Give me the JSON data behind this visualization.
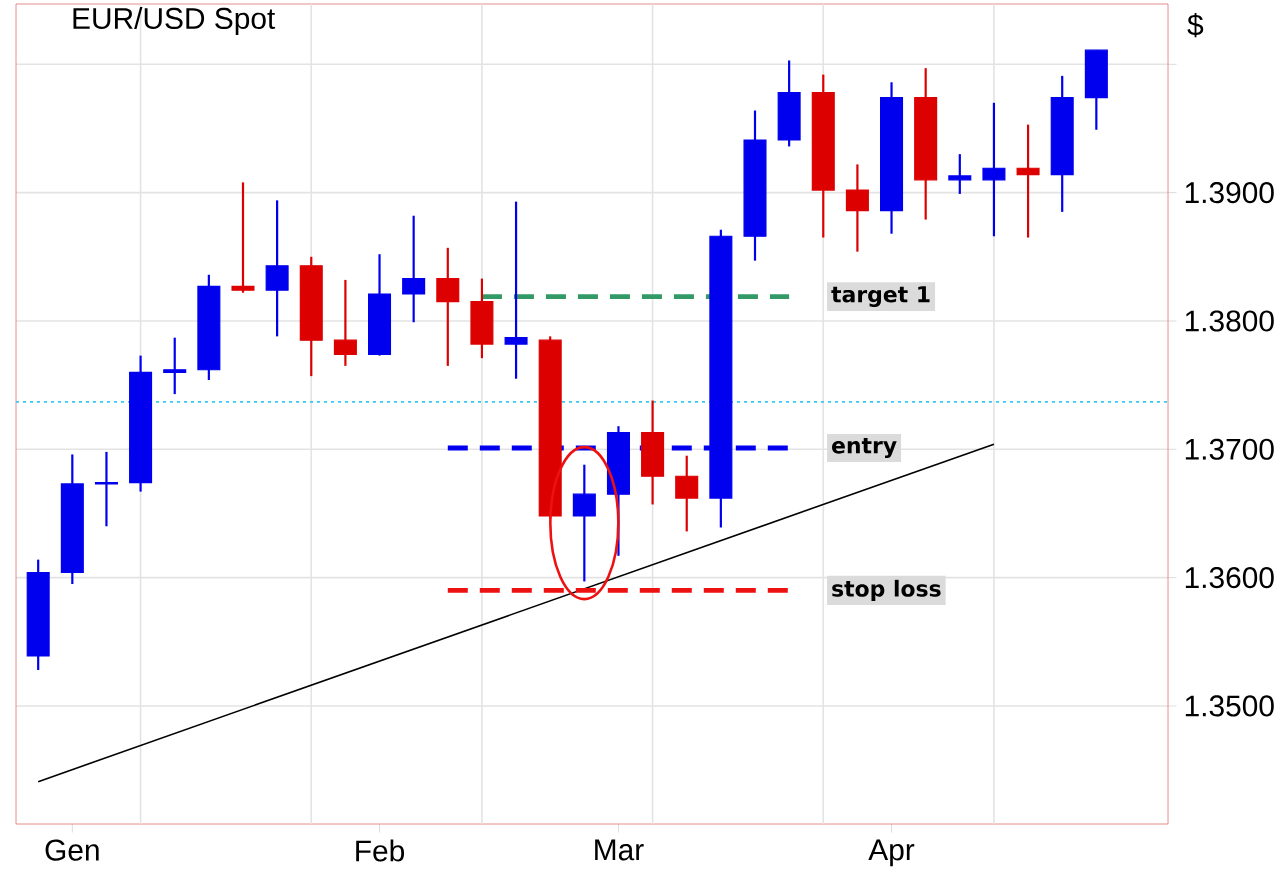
{
  "chart_data": {
    "type": "candlestick",
    "title": "EUR/USD Spot",
    "ylabel": "$",
    "categories": [
      null,
      "Gen",
      null,
      null,
      null,
      null,
      null,
      null,
      null,
      null,
      "Feb",
      null,
      null,
      null,
      null,
      null,
      null,
      "Mar",
      null,
      null,
      null,
      null,
      null,
      null,
      null,
      "Apr",
      null,
      null,
      null,
      null,
      null,
      null
    ],
    "ohlc": [
      [
        1.3539,
        1.3614,
        1.3528,
        1.3604
      ],
      [
        1.3604,
        1.3696,
        1.3595,
        1.3673
      ],
      [
        1.3673,
        1.3698,
        1.364,
        1.3674
      ],
      [
        1.3674,
        1.3773,
        1.3667,
        1.376
      ],
      [
        1.376,
        1.3787,
        1.3743,
        1.3762
      ],
      [
        1.3762,
        1.3836,
        1.3754,
        1.3827
      ],
      [
        1.3827,
        1.3908,
        1.3822,
        1.3824
      ],
      [
        1.3824,
        1.3894,
        1.3788,
        1.3843
      ],
      [
        1.3843,
        1.385,
        1.3757,
        1.3785
      ],
      [
        1.3785,
        1.3832,
        1.3765,
        1.3774
      ],
      [
        1.3774,
        1.3852,
        1.3773,
        1.3821
      ],
      [
        1.3821,
        1.3882,
        1.3799,
        1.3833
      ],
      [
        1.3833,
        1.3857,
        1.3765,
        1.3815
      ],
      [
        1.3815,
        1.3833,
        1.3771,
        1.3782
      ],
      [
        1.3782,
        1.3893,
        1.3755,
        1.3787
      ],
      [
        1.3785,
        1.3788,
        1.3646,
        1.3648
      ],
      [
        1.3648,
        1.3688,
        1.3597,
        1.3665
      ],
      [
        1.3665,
        1.3718,
        1.3617,
        1.3713
      ],
      [
        1.3713,
        1.3738,
        1.3657,
        1.3679
      ],
      [
        1.3679,
        1.3695,
        1.3636,
        1.3662
      ],
      [
        1.3662,
        1.3871,
        1.3639,
        1.3866
      ],
      [
        1.3866,
        1.3964,
        1.3847,
        1.3941
      ],
      [
        1.3941,
        1.4003,
        1.3936,
        1.3978
      ],
      [
        1.3978,
        1.3992,
        1.3865,
        1.3902
      ],
      [
        1.3902,
        1.3922,
        1.3854,
        1.3886
      ],
      [
        1.3886,
        1.3986,
        1.3868,
        1.3974
      ],
      [
        1.3974,
        1.3997,
        1.3879,
        1.391
      ],
      [
        1.391,
        1.393,
        1.3899,
        1.3913
      ],
      [
        1.391,
        1.397,
        1.3866,
        1.3919
      ],
      [
        1.3919,
        1.3953,
        1.3865,
        1.3914
      ],
      [
        1.3914,
        1.3991,
        1.3885,
        1.3974
      ],
      [
        1.3974,
        1.4011,
        1.3949,
        1.4011
      ]
    ],
    "colors": [
      "#0000ee",
      "#0000ee",
      "#0000ee",
      "#0000ee",
      "#0000ee",
      "#0000ee",
      "#dd0000",
      "#0000ee",
      "#dd0000",
      "#dd0000",
      "#0000ee",
      "#0000ee",
      "#dd0000",
      "#dd0000",
      "#0000ee",
      "#dd0000",
      "#0000ee",
      "#0000ee",
      "#dd0000",
      "#dd0000",
      "#0000ee",
      "#0000ee",
      "#0000ee",
      "#dd0000",
      "#dd0000",
      "#0000ee",
      "#dd0000",
      "#0000ee",
      "#0000ee",
      "#dd0000",
      "#0000ee",
      "#0000ee"
    ],
    "series": [
      {
        "type": "line",
        "color": "#000000",
        "line_style": "solid",
        "values": [
          1.3441,
          null,
          null,
          null,
          null,
          null,
          null,
          null,
          null,
          null,
          null,
          null,
          null,
          null,
          null,
          null,
          null,
          null,
          null,
          null,
          null,
          null,
          null,
          null,
          null,
          null,
          null,
          null,
          1.3704,
          null,
          null,
          null
        ]
      },
      {
        "type": "line",
        "name": "target 1",
        "color": "#339966",
        "line_style": "dashed",
        "values": [
          null,
          null,
          null,
          null,
          null,
          null,
          null,
          null,
          null,
          null,
          null,
          null,
          null,
          1.3819,
          null,
          null,
          null,
          null,
          null,
          null,
          null,
          null,
          1.3819,
          null,
          null,
          null,
          null,
          null,
          null,
          null,
          null,
          null
        ]
      },
      {
        "type": "line",
        "name": "entry",
        "color": "#0000ee",
        "line_style": "dashed",
        "values": [
          null,
          null,
          null,
          null,
          null,
          null,
          null,
          null,
          null,
          null,
          null,
          null,
          1.3701,
          null,
          null,
          null,
          null,
          null,
          null,
          null,
          null,
          null,
          1.3701,
          null,
          null,
          null,
          null,
          null,
          null,
          null,
          null,
          null
        ]
      },
      {
        "type": "line",
        "name": "stop loss",
        "color": "#ee1111",
        "line_style": "dashed",
        "values": [
          null,
          null,
          null,
          null,
          null,
          null,
          null,
          null,
          null,
          null,
          null,
          null,
          1.359,
          null,
          null,
          null,
          null,
          null,
          null,
          null,
          null,
          null,
          1.359,
          null,
          null,
          null,
          null,
          null,
          null,
          null,
          null,
          null
        ]
      }
    ],
    "ref_lines": [
      {
        "axis": "y",
        "value": 1.3737,
        "color": "#33ccee",
        "line_style": "dotted"
      }
    ],
    "ylim": [
      1.3408,
      1.4047
    ],
    "yticks": [
      {
        "value": 1.35,
        "label": "1.3500"
      },
      {
        "value": 1.36,
        "label": "1.3600"
      },
      {
        "value": 1.37,
        "label": "1.3700"
      },
      {
        "value": 1.38,
        "label": "1.3800"
      },
      {
        "value": 1.39,
        "label": "1.3900"
      },
      {
        "value": 1.4,
        "label": null
      }
    ],
    "grid": true
  }
}
